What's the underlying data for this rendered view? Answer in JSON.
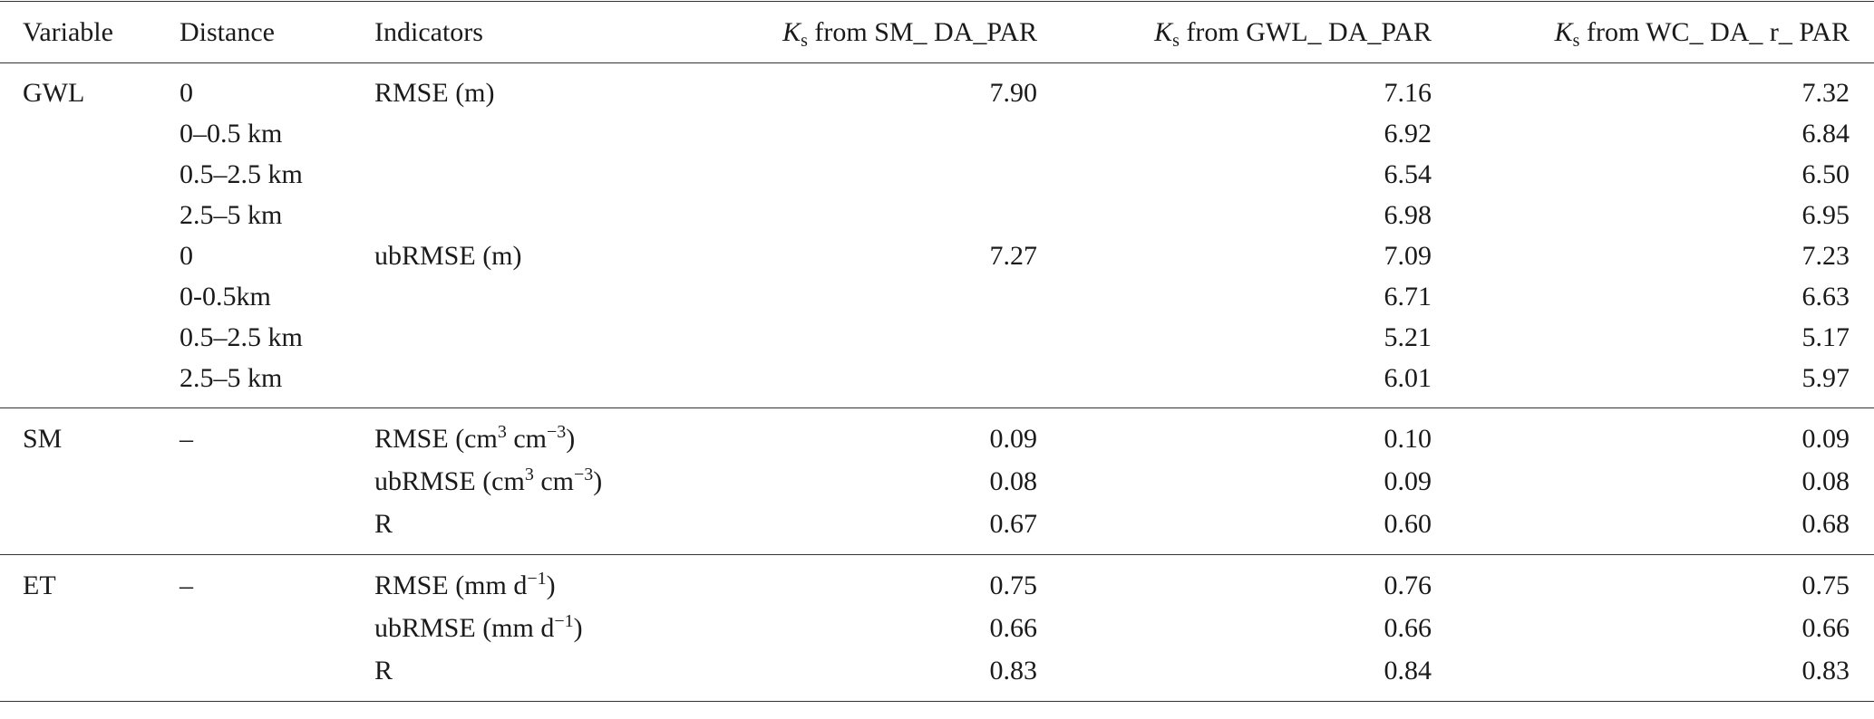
{
  "table": {
    "header": [
      [
        "Variable"
      ],
      [
        "Distance"
      ],
      [
        "Indicators"
      ],
      [
        {
          "italic": "K"
        },
        {
          "sub": "s"
        },
        " from SM_ DA_PAR"
      ],
      [
        {
          "italic": "K"
        },
        {
          "sub": "s"
        },
        " from GWL_ DA_PAR"
      ],
      [
        {
          "italic": "K"
        },
        {
          "sub": "s"
        },
        " from WC_ DA_ r_ PAR"
      ]
    ],
    "groups": [
      {
        "variable": "GWL",
        "rows": [
          {
            "distance": "0",
            "indicator": [
              "RMSE (m)"
            ],
            "values": [
              "7.90",
              "7.16",
              "7.32"
            ]
          },
          {
            "distance": "0–0.5 km",
            "values": [
              null,
              "6.92",
              "6.84"
            ]
          },
          {
            "distance": "0.5–2.5 km",
            "values": [
              null,
              "6.54",
              "6.50"
            ]
          },
          {
            "distance": "2.5–5 km",
            "values": [
              null,
              "6.98",
              "6.95"
            ]
          },
          {
            "distance": "0",
            "indicator": [
              "ubRMSE (m)"
            ],
            "values": [
              "7.27",
              "7.09",
              "7.23"
            ]
          },
          {
            "distance": "0-0.5km",
            "values": [
              null,
              "6.71",
              "6.63"
            ]
          },
          {
            "distance": "0.5–2.5 km",
            "values": [
              null,
              "5.21",
              "5.17"
            ]
          },
          {
            "distance": "2.5–5 km",
            "values": [
              null,
              "6.01",
              "5.97"
            ]
          }
        ]
      },
      {
        "variable": "SM",
        "rows": [
          {
            "distance": "–",
            "indicator": [
              "RMSE (cm",
              {
                "sup": "3"
              },
              " cm",
              {
                "sup": "−3"
              },
              ")"
            ],
            "values": [
              "0.09",
              "0.10",
              "0.09"
            ]
          },
          {
            "indicator": [
              "ubRMSE (cm",
              {
                "sup": "3"
              },
              " cm",
              {
                "sup": "−3"
              },
              ")"
            ],
            "values": [
              "0.08",
              "0.09",
              "0.08"
            ]
          },
          {
            "indicator": [
              "R"
            ],
            "values": [
              "0.67",
              "0.60",
              "0.68"
            ]
          }
        ]
      },
      {
        "variable": "ET",
        "rows": [
          {
            "distance": "–",
            "indicator": [
              "RMSE (mm d",
              {
                "sup": "−1"
              },
              ")"
            ],
            "values": [
              "0.75",
              "0.76",
              "0.75"
            ]
          },
          {
            "indicator": [
              "ubRMSE (mm d",
              {
                "sup": "−1"
              },
              ")"
            ],
            "values": [
              "0.66",
              "0.66",
              "0.66"
            ]
          },
          {
            "indicator": [
              "R"
            ],
            "values": [
              "0.83",
              "0.84",
              "0.83"
            ]
          }
        ]
      }
    ]
  }
}
